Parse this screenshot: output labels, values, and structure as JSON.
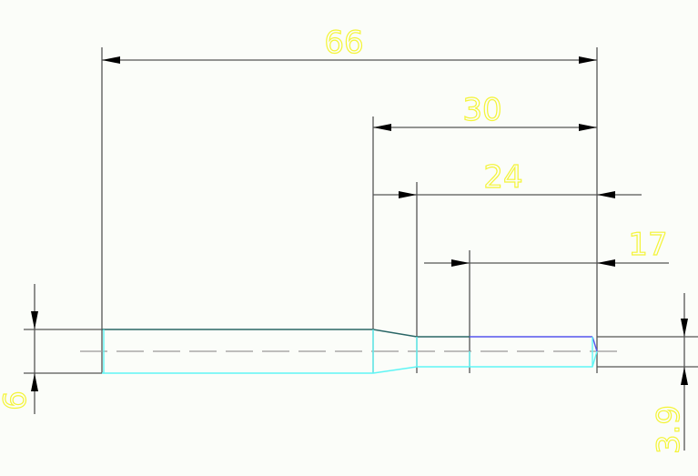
{
  "dimensions": {
    "overall_length": "66",
    "right_section_length": "30",
    "reduced_length": "24",
    "blue_length": "17",
    "left_diameter": "6",
    "right_diameter": "3.9"
  },
  "colors": {
    "background": "#fbfdf9",
    "dimension_line": "#555555",
    "dimension_text": "#f4f43a",
    "outline_dark": "#2a6666",
    "outline_cyan": "#5ff5f5",
    "outline_blue": "#5555ee",
    "centerline": "#999999"
  }
}
